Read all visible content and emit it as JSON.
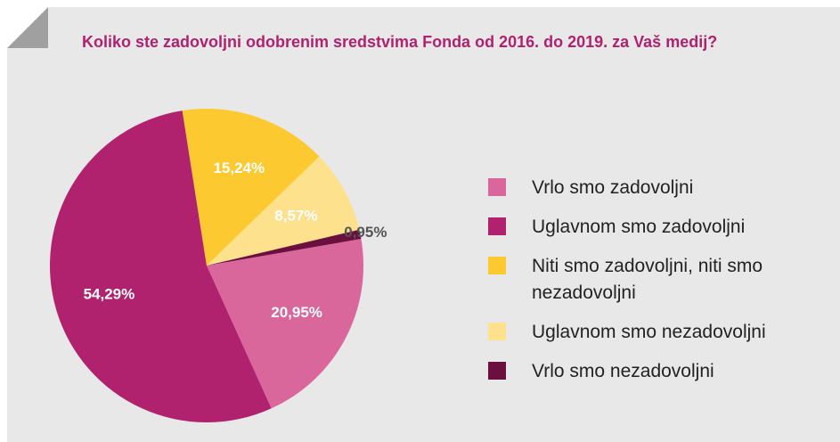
{
  "chart_data": {
    "type": "pie",
    "title": "Koliko ste zadovoljni odobrenim sredstvima Fonda od 2016. do 2019. za Vaš medij?",
    "categories": [
      "Vrlo smo zadovoljni",
      "Uglavnom smo zadovoljni",
      "Niti smo zadovoljni, niti smo nezadovoljni",
      "Uglavnom smo nezadovoljni",
      "Vrlo smo nezadovoljni"
    ],
    "values": [
      20.95,
      54.29,
      15.24,
      8.57,
      0.95
    ],
    "value_labels": [
      "20,95%",
      "54,29%",
      "15,24%",
      "8,57%",
      "0,95%"
    ],
    "colors": [
      "#da679c",
      "#b0226e",
      "#fcc930",
      "#fde18c",
      "#6b0f3f"
    ],
    "legend": "right"
  }
}
